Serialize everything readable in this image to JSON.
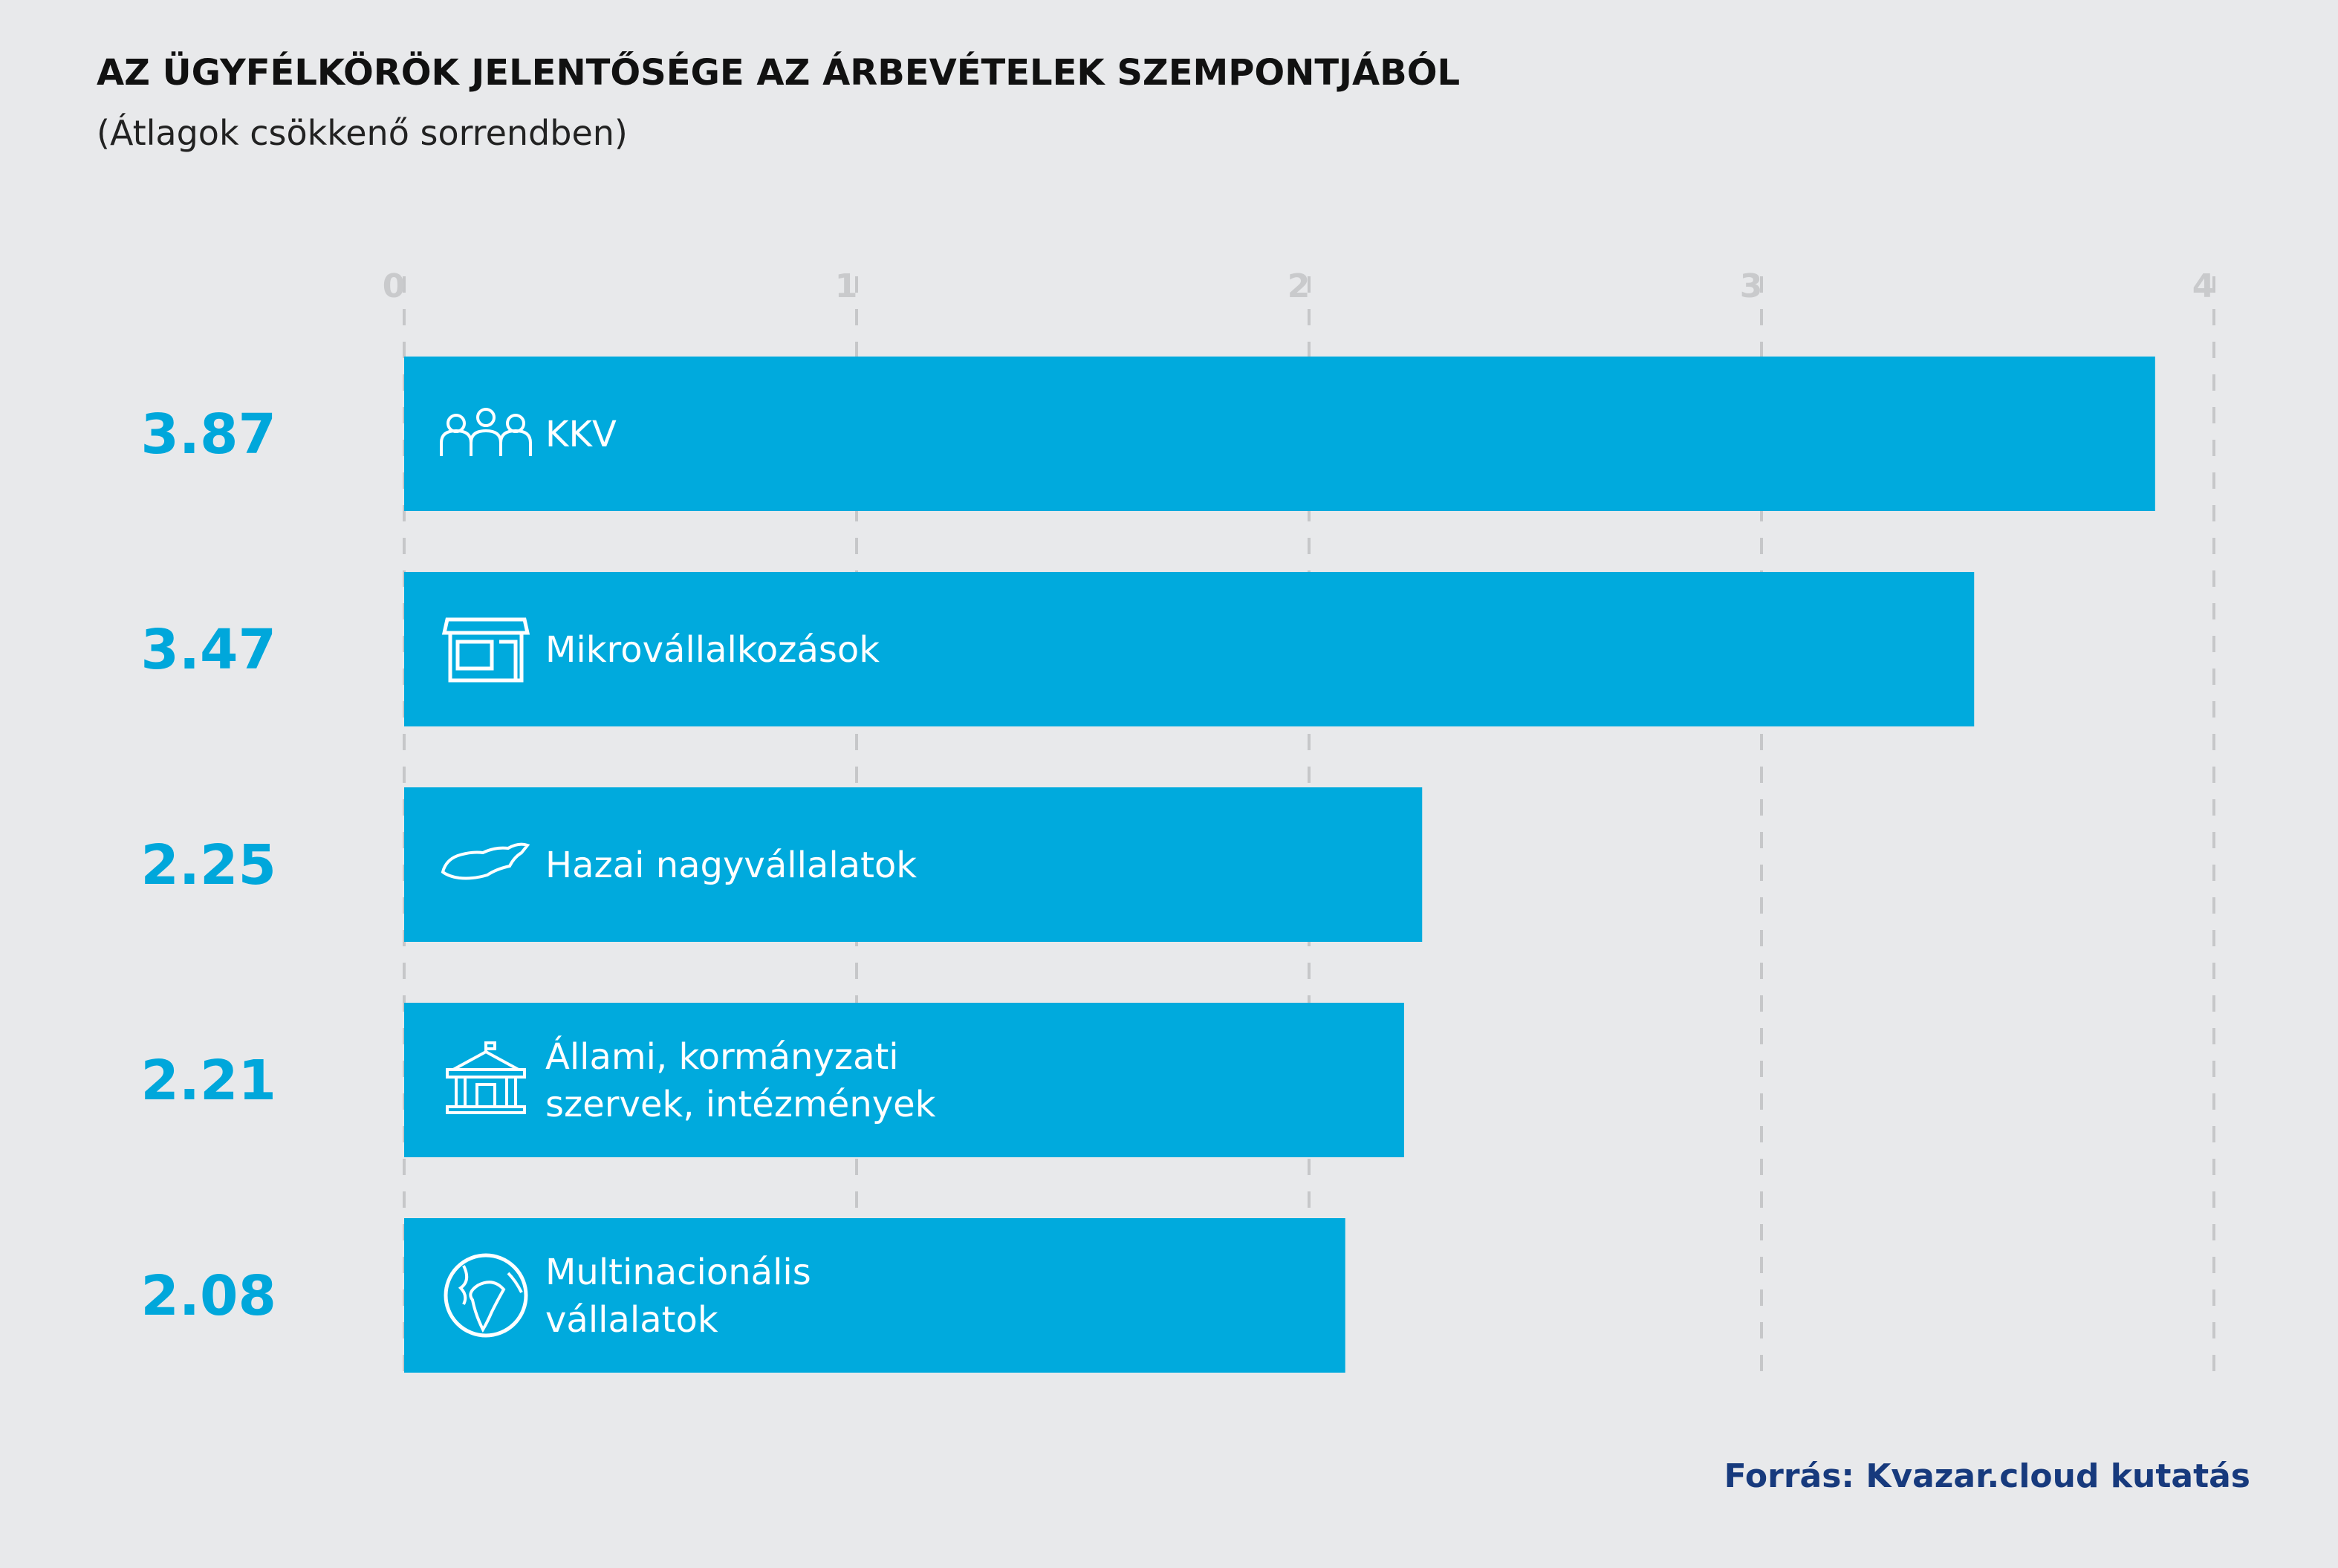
{
  "chart_data": {
    "type": "bar",
    "orientation": "horizontal",
    "title": "AZ ÜGYFÉLKÖRÖK JELENTŐSÉGE AZ ÁRBEVÉTELEK SZEMPONTJÁBÓL",
    "subtitle": "(Átlagok csökkenő sorrendben)",
    "xlabel": "",
    "ylabel": "",
    "xlim": [
      0,
      4
    ],
    "ticks": [
      "0",
      "1",
      "2",
      "3",
      "4"
    ],
    "grid": true,
    "categories": [
      {
        "label_lines": [
          "KKV"
        ],
        "icon": "people-group-icon"
      },
      {
        "label_lines": [
          "Mikrovállalkozások"
        ],
        "icon": "storefront-icon"
      },
      {
        "label_lines": [
          "Hazai nagyvállalatok"
        ],
        "icon": "hungary-map-icon"
      },
      {
        "label_lines": [
          "Állami, kormányzati",
          "szervek, intézmények"
        ],
        "icon": "government-building-icon"
      },
      {
        "label_lines": [
          "Multinacionális",
          "vállalatok"
        ],
        "icon": "globe-icon"
      }
    ],
    "values": [
      3.87,
      3.47,
      2.25,
      2.21,
      2.08
    ],
    "value_labels": [
      "3.87",
      "3.47",
      "2.25",
      "2.21",
      "2.08"
    ]
  },
  "source": "Forrás: Kvazar.cloud kutatás",
  "colors": {
    "bar": "#00aadd",
    "value": "#00a7db",
    "grid": "#c6c7c9",
    "tick": "#c9cacc",
    "source": "#173a7d"
  }
}
